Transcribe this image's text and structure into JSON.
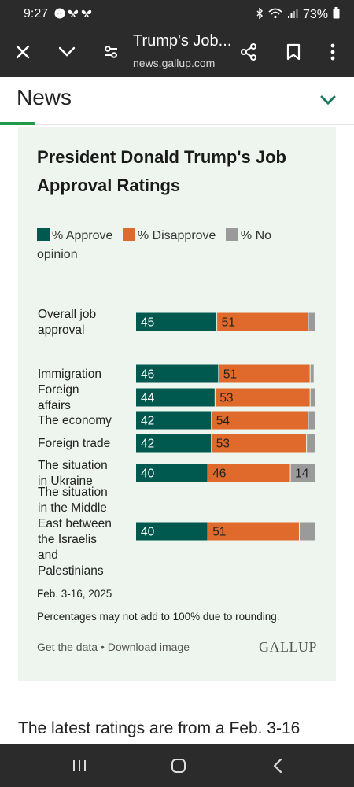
{
  "status_bar": {
    "time": "9:27",
    "battery": "73%"
  },
  "browser": {
    "title": "Trump's Job...",
    "url": "news.gallup.com",
    "icons": [
      "close-icon",
      "chevron-down-icon",
      "site-settings-icon",
      "share-icon",
      "bookmark-icon",
      "more-icon"
    ]
  },
  "section": {
    "label": "News"
  },
  "card": {
    "title": "President Donald Trump's Job Approval Ratings",
    "legend": [
      {
        "label": "% Approve",
        "color": "#00594f"
      },
      {
        "label": "% Disapprove",
        "color": "#e06a2b"
      },
      {
        "label": "% No opinion",
        "color": "#9a9a9a"
      }
    ],
    "date": "Feb. 3-16, 2025",
    "note": "Percentages may not add to 100% due to rounding.",
    "get_data": "Get the data",
    "separator": "•",
    "download": "Download image",
    "brand": "GALLUP"
  },
  "chart_data": {
    "type": "bar",
    "stacked": true,
    "orientation": "horizontal",
    "categories": [
      "Overall job approval",
      "Immigration",
      "Foreign affairs",
      "The economy",
      "Foreign trade",
      "The situation in Ukraine",
      "The situation in the Middle East between the Israelis and Palestinians"
    ],
    "series": [
      {
        "name": "% Approve",
        "values": [
          45,
          46,
          44,
          42,
          42,
          40,
          40
        ],
        "color": "#00594f"
      },
      {
        "name": "% Disapprove",
        "values": [
          51,
          51,
          53,
          54,
          53,
          46,
          51
        ],
        "color": "#e06a2b"
      },
      {
        "name": "% No opinion",
        "values": [
          4,
          2,
          3,
          4,
          5,
          14,
          9
        ],
        "color": "#9a9a9a"
      }
    ],
    "value_labels": {
      "% Approve": [
        "45",
        "46",
        "44",
        "42",
        "42",
        "40",
        "40"
      ],
      "% Disapprove": [
        "51",
        "51",
        "53",
        "54",
        "53",
        "46",
        "51"
      ],
      "% No opinion": [
        "",
        "",
        "",
        "",
        "",
        "14",
        ""
      ]
    },
    "xlim": [
      0,
      100
    ]
  },
  "article": {
    "text": "The latest ratings are from a Feb. 3-16"
  },
  "nav": {
    "icons": [
      "recent-apps-icon",
      "home-icon",
      "back-icon"
    ]
  }
}
